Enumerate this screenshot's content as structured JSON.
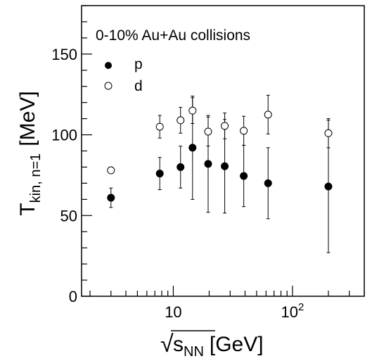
{
  "chart_data": {
    "type": "scatter",
    "title": "0-10% Au+Au collisions",
    "xlabel": {
      "sqrt": "√",
      "main": "s",
      "sub": "NN",
      "unit": "[GeV]"
    },
    "ylabel": {
      "main": "T",
      "sub": "kin, n=1",
      "unit": "[MeV]"
    },
    "x_scale": "log",
    "xlim": [
      1.7,
      400
    ],
    "ylim": [
      0,
      180
    ],
    "grid": false,
    "legend_position": "top-left",
    "x_ticks": [
      {
        "value": 10,
        "label": "10",
        "exp": ""
      },
      {
        "value": 100,
        "label": "10",
        "exp": "2"
      }
    ],
    "y_ticks": [
      {
        "value": 0,
        "label": "0"
      },
      {
        "value": 50,
        "label": "50"
      },
      {
        "value": 100,
        "label": "100"
      },
      {
        "value": 150,
        "label": "150"
      }
    ],
    "series": [
      {
        "name": "p",
        "marker": "filled-circle",
        "color": "#000000",
        "points": [
          {
            "x": 3.0,
            "y": 61,
            "err": 6
          },
          {
            "x": 7.7,
            "y": 76,
            "err": 10
          },
          {
            "x": 11.5,
            "y": 80,
            "err": 13
          },
          {
            "x": 14.5,
            "y": 92,
            "err": 32
          },
          {
            "x": 19.6,
            "y": 82,
            "err": 30
          },
          {
            "x": 27.0,
            "y": 80.5,
            "err": 29
          },
          {
            "x": 39.0,
            "y": 74.5,
            "err": 19
          },
          {
            "x": 62.4,
            "y": 70,
            "err": 22
          },
          {
            "x": 200.0,
            "y": 68,
            "err": 41
          }
        ]
      },
      {
        "name": "d",
        "marker": "open-circle",
        "color": "#000000",
        "points": [
          {
            "x": 3.0,
            "y": 78,
            "err": 2
          },
          {
            "x": 7.7,
            "y": 105,
            "err": 7
          },
          {
            "x": 11.5,
            "y": 109,
            "err": 8
          },
          {
            "x": 14.5,
            "y": 115,
            "err": 8
          },
          {
            "x": 19.6,
            "y": 102,
            "err": 9
          },
          {
            "x": 27.0,
            "y": 105.5,
            "err": 8
          },
          {
            "x": 39.0,
            "y": 102.5,
            "err": 9
          },
          {
            "x": 62.4,
            "y": 112.5,
            "err": 12
          },
          {
            "x": 200.0,
            "y": 101,
            "err": 9
          }
        ]
      }
    ]
  }
}
